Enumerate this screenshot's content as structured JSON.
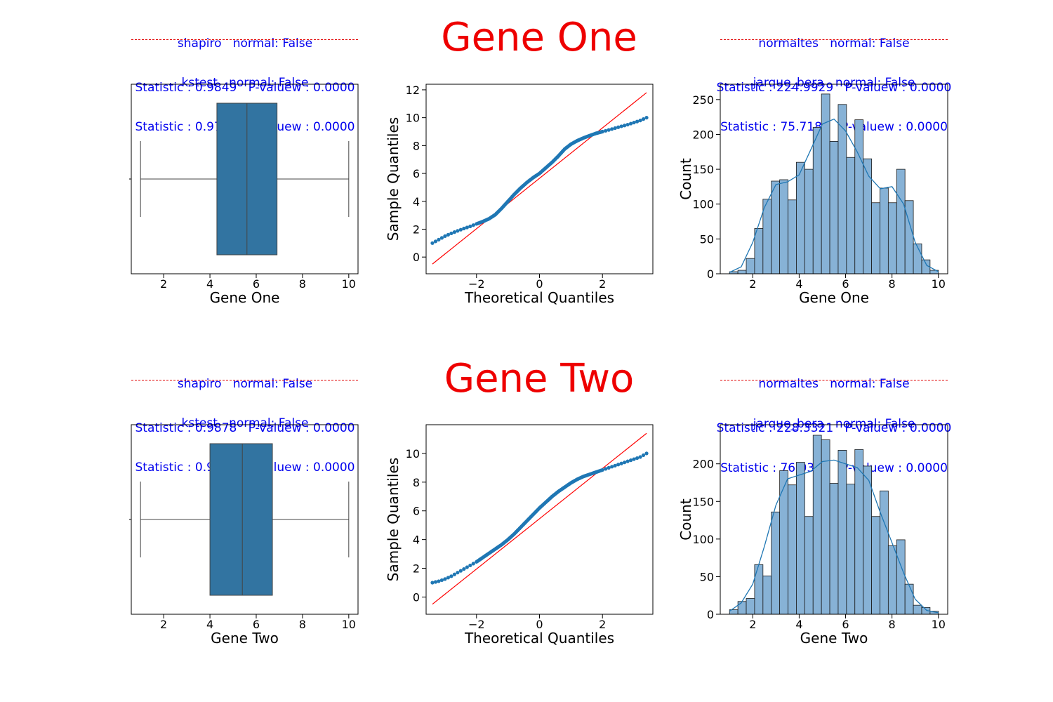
{
  "rows": [
    {
      "title": "Gene One",
      "tests": {
        "shapiro": {
          "name": "shapiro",
          "normal_text": "normal: False",
          "stat_line": "Statistic : 0.9849   P-valuew : 0.0000"
        },
        "kstest": {
          "name": "kstest",
          "normal_text": "normal: False",
          "stat_line": "Statistic : 0.9731   P-valuew : 0.0000"
        },
        "normaltest": {
          "name": "normaltes",
          "normal_text": "normal: False",
          "stat_line": "Statistic : 224.9929   P-valuew : 0.0000"
        },
        "jarque_bera": {
          "name": "jarque_bera",
          "normal_text": "normal: False",
          "stat_line": "Statistic : 75.7180   P-valuew : 0.0000"
        }
      }
    },
    {
      "title": "Gene Two",
      "tests": {
        "shapiro": {
          "name": "shapiro",
          "normal_text": "normal: False",
          "stat_line": "Statistic : 0.9878   P-valuew : 0.0000"
        },
        "kstest": {
          "name": "kstest",
          "normal_text": "normal: False",
          "stat_line": "Statistic : 0.9678   P-valuew : 0.0000"
        },
        "normaltest": {
          "name": "normaltes",
          "normal_text": "normal: False",
          "stat_line": "Statistic : 228.3321   P-valuew : 0.0000"
        },
        "jarque_bera": {
          "name": "jarque_bera",
          "normal_text": "normal: False",
          "stat_line": "Statistic : 76.0302   P-valuew : 0.0000"
        }
      }
    }
  ],
  "colors": {
    "box": "#3274a1",
    "points": "#1f77b4",
    "ref_line": "#ff0000",
    "hist_bar": "#87b2d6",
    "kde": "#1f77b4",
    "stat_text": "#0000ee",
    "title": "#ee0000"
  },
  "chart_data": [
    {
      "type": "box",
      "xlabel": "Gene One",
      "xlim": [
        0.6,
        10.4
      ],
      "xticks": [
        2,
        4,
        6,
        8,
        10
      ],
      "min": 1.0,
      "q1": 4.3,
      "median": 5.6,
      "q3": 6.9,
      "max": 10.0
    },
    {
      "type": "scatter",
      "xlabel": "Theoretical Quantiles",
      "ylabel": "Sample Quantiles",
      "xlim": [
        -3.6,
        3.6
      ],
      "ylim": [
        -1.2,
        12.4
      ],
      "xticks": [
        -2,
        0,
        2
      ],
      "yticks": [
        0,
        2,
        4,
        6,
        8,
        10,
        12
      ],
      "reference_line": {
        "x": [
          -3.4,
          3.4
        ],
        "y": [
          -0.5,
          11.8
        ]
      },
      "x": [
        -3.4,
        -3.2,
        -3.0,
        -2.8,
        -2.6,
        -2.4,
        -2.2,
        -2.0,
        -1.8,
        -1.6,
        -1.4,
        -1.2,
        -1.0,
        -0.8,
        -0.6,
        -0.4,
        -0.2,
        0.0,
        0.2,
        0.4,
        0.6,
        0.8,
        1.0,
        1.2,
        1.4,
        1.6,
        1.8,
        2.0,
        2.2,
        2.4,
        2.6,
        2.8,
        3.0,
        3.2,
        3.4
      ],
      "y": [
        1.0,
        1.25,
        1.5,
        1.7,
        1.88,
        2.05,
        2.2,
        2.38,
        2.55,
        2.75,
        3.05,
        3.5,
        4.0,
        4.5,
        4.95,
        5.35,
        5.7,
        6.0,
        6.4,
        6.8,
        7.25,
        7.75,
        8.1,
        8.35,
        8.55,
        8.72,
        8.88,
        9.0,
        9.12,
        9.25,
        9.38,
        9.5,
        9.65,
        9.8,
        10.0
      ]
    },
    {
      "type": "bar",
      "xlabel": "Gene One",
      "ylabel": "Count",
      "xlim": [
        0.6,
        10.4
      ],
      "ylim": [
        0,
        272
      ],
      "xticks": [
        2,
        4,
        6,
        8,
        10
      ],
      "yticks": [
        0,
        50,
        100,
        150,
        200,
        250
      ],
      "bin_edges": [
        1.0,
        1.36,
        1.72,
        2.08,
        2.44,
        2.8,
        3.16,
        3.52,
        3.88,
        4.24,
        4.6,
        4.96,
        5.32,
        5.68,
        6.04,
        6.4,
        6.76,
        7.12,
        7.48,
        7.84,
        8.2,
        8.56,
        8.92,
        9.28,
        9.64,
        10.0
      ],
      "counts": [
        3,
        5,
        22,
        65,
        107,
        133,
        135,
        106,
        160,
        150,
        210,
        258,
        190,
        243,
        167,
        221,
        165,
        102,
        123,
        102,
        150,
        105,
        43,
        20,
        5
      ],
      "kde_x": [
        1.0,
        1.5,
        2.0,
        2.5,
        3.0,
        3.5,
        4.0,
        4.5,
        5.0,
        5.5,
        6.0,
        6.5,
        7.0,
        7.5,
        8.0,
        8.5,
        9.0,
        9.5,
        10.0
      ],
      "kde_y": [
        2,
        10,
        45,
        95,
        128,
        132,
        142,
        178,
        215,
        222,
        205,
        175,
        140,
        122,
        125,
        100,
        45,
        12,
        3
      ]
    },
    {
      "type": "box",
      "xlabel": "Gene Two",
      "xlim": [
        0.6,
        10.4
      ],
      "xticks": [
        2,
        4,
        6,
        8,
        10
      ],
      "min": 1.0,
      "q1": 4.0,
      "median": 5.4,
      "q3": 6.7,
      "max": 10.0
    },
    {
      "type": "scatter",
      "xlabel": "Theoretical Quantiles",
      "ylabel": "Sample Quantiles",
      "xlim": [
        -3.6,
        3.6
      ],
      "ylim": [
        -1.2,
        12.0
      ],
      "xticks": [
        -2,
        0,
        2
      ],
      "yticks": [
        0,
        2,
        4,
        6,
        8,
        10
      ],
      "reference_line": {
        "x": [
          -3.4,
          3.4
        ],
        "y": [
          -0.5,
          11.4
        ]
      },
      "x": [
        -3.4,
        -3.2,
        -3.0,
        -2.8,
        -2.6,
        -2.4,
        -2.2,
        -2.0,
        -1.8,
        -1.6,
        -1.4,
        -1.2,
        -1.0,
        -0.8,
        -0.6,
        -0.4,
        -0.2,
        0.0,
        0.2,
        0.4,
        0.6,
        0.8,
        1.0,
        1.2,
        1.4,
        1.6,
        1.8,
        2.0,
        2.2,
        2.4,
        2.6,
        2.8,
        3.0,
        3.2,
        3.4
      ],
      "y": [
        1.0,
        1.1,
        1.25,
        1.45,
        1.7,
        1.95,
        2.2,
        2.45,
        2.75,
        3.05,
        3.35,
        3.65,
        4.0,
        4.4,
        4.85,
        5.3,
        5.75,
        6.2,
        6.6,
        7.0,
        7.35,
        7.65,
        7.95,
        8.2,
        8.4,
        8.55,
        8.7,
        8.85,
        9.0,
        9.15,
        9.3,
        9.45,
        9.6,
        9.75,
        10.0
      ]
    },
    {
      "type": "bar",
      "xlabel": "Gene Two",
      "ylabel": "Count",
      "xlim": [
        0.6,
        10.4
      ],
      "ylim": [
        0,
        252
      ],
      "xticks": [
        2,
        4,
        6,
        8,
        10
      ],
      "yticks": [
        0,
        50,
        100,
        150,
        200
      ],
      "bin_edges": [
        1.0,
        1.36,
        1.72,
        2.08,
        2.44,
        2.8,
        3.16,
        3.52,
        3.88,
        4.24,
        4.6,
        4.96,
        5.32,
        5.68,
        6.04,
        6.4,
        6.76,
        7.12,
        7.48,
        7.84,
        8.2,
        8.56,
        8.92,
        9.28,
        9.64,
        10.0
      ],
      "counts": [
        6,
        17,
        21,
        66,
        51,
        136,
        191,
        172,
        202,
        130,
        238,
        232,
        174,
        218,
        173,
        219,
        197,
        130,
        164,
        91,
        99,
        40,
        12,
        9,
        4
      ],
      "kde_x": [
        1.0,
        1.5,
        2.0,
        2.5,
        3.0,
        3.5,
        4.0,
        4.5,
        5.0,
        5.5,
        6.0,
        6.5,
        7.0,
        7.5,
        8.0,
        8.5,
        9.0,
        9.5,
        10.0
      ],
      "kde_y": [
        4,
        15,
        40,
        90,
        145,
        180,
        185,
        190,
        203,
        205,
        200,
        195,
        178,
        135,
        95,
        55,
        20,
        5,
        2
      ]
    }
  ]
}
